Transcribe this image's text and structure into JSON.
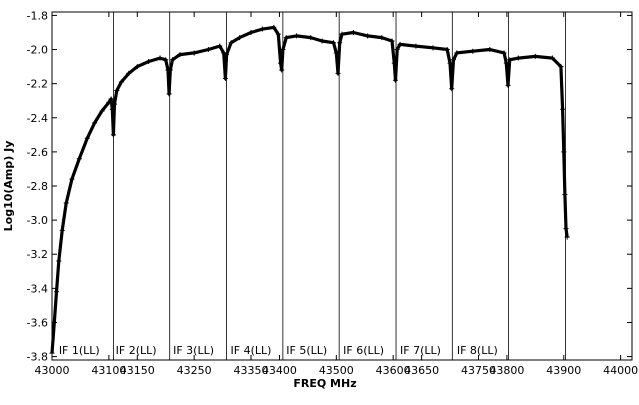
{
  "chart_data": {
    "type": "line",
    "title": "",
    "xlabel": "FREQ MHz",
    "ylabel": "Log10(Amp) Jy",
    "xlim": [
      43000,
      44020
    ],
    "ylim": [
      -3.82,
      -1.78
    ],
    "grid": false,
    "x_ticks": [
      {
        "value": 43000,
        "label": "43000"
      },
      {
        "value": 43100,
        "label": "43100"
      },
      {
        "value": 43150,
        "label": "43150"
      },
      {
        "value": 43250,
        "label": "43250"
      },
      {
        "value": 43350,
        "label": "43350"
      },
      {
        "value": 43400,
        "label": "43400"
      },
      {
        "value": 43500,
        "label": "43500"
      },
      {
        "value": 43600,
        "label": "43600"
      },
      {
        "value": 43650,
        "label": "43650"
      },
      {
        "value": 43750,
        "label": "43750"
      },
      {
        "value": 43800,
        "label": "43800"
      },
      {
        "value": 43900,
        "label": "43900"
      },
      {
        "value": 44000,
        "label": "44000"
      }
    ],
    "y_ticks": [
      {
        "value": -1.8,
        "label": "-1.8"
      },
      {
        "value": -2.0,
        "label": "-2.0"
      },
      {
        "value": -2.2,
        "label": "-2.2"
      },
      {
        "value": -2.4,
        "label": "-2.4"
      },
      {
        "value": -2.6,
        "label": "-2.6"
      },
      {
        "value": -2.8,
        "label": "-2.8"
      },
      {
        "value": -3.0,
        "label": "-3.0"
      },
      {
        "value": -3.2,
        "label": "-3.2"
      },
      {
        "value": -3.4,
        "label": "-3.4"
      },
      {
        "value": -3.6,
        "label": "-3.6"
      },
      {
        "value": -3.8,
        "label": "-3.8"
      }
    ],
    "if_boundaries": [
      43108,
      43207,
      43307,
      43406,
      43505,
      43605,
      43704,
      43803,
      43903
    ],
    "if_labels": [
      {
        "label": "IF 1(LL)",
        "x": 43012
      },
      {
        "label": "IF 2(LL)",
        "x": 43112
      },
      {
        "label": "IF 3(LL)",
        "x": 43213
      },
      {
        "label": "IF 4(LL)",
        "x": 43314
      },
      {
        "label": "IF 5(LL)",
        "x": 43412
      },
      {
        "label": "IF 6(LL)",
        "x": 43512
      },
      {
        "label": "IF 7(LL)",
        "x": 43612
      },
      {
        "label": "IF 8(LL)",
        "x": 43712
      }
    ],
    "series": [
      {
        "color": "#000000",
        "marker": "plus",
        "points": [
          [
            43000,
            -3.78
          ],
          [
            43004,
            -3.6
          ],
          [
            43008,
            -3.42
          ],
          [
            43012,
            -3.24
          ],
          [
            43018,
            -3.06
          ],
          [
            43025,
            -2.9
          ],
          [
            43035,
            -2.76
          ],
          [
            43048,
            -2.64
          ],
          [
            43062,
            -2.52
          ],
          [
            43075,
            -2.43
          ],
          [
            43088,
            -2.36
          ],
          [
            43100,
            -2.31
          ],
          [
            43104,
            -2.29
          ],
          [
            43106,
            -2.35
          ],
          [
            43108,
            -2.5
          ],
          [
            43110,
            -2.32
          ],
          [
            43114,
            -2.24
          ],
          [
            43122,
            -2.19
          ],
          [
            43135,
            -2.14
          ],
          [
            43150,
            -2.1
          ],
          [
            43170,
            -2.07
          ],
          [
            43190,
            -2.05
          ],
          [
            43200,
            -2.06
          ],
          [
            43204,
            -2.12
          ],
          [
            43206,
            -2.26
          ],
          [
            43208,
            -2.12
          ],
          [
            43212,
            -2.06
          ],
          [
            43225,
            -2.03
          ],
          [
            43250,
            -2.02
          ],
          [
            43275,
            -2.0
          ],
          [
            43295,
            -1.98
          ],
          [
            43302,
            -2.02
          ],
          [
            43305,
            -2.17
          ],
          [
            43307,
            -2.03
          ],
          [
            43315,
            -1.96
          ],
          [
            43330,
            -1.93
          ],
          [
            43350,
            -1.9
          ],
          [
            43370,
            -1.88
          ],
          [
            43390,
            -1.87
          ],
          [
            43398,
            -1.91
          ],
          [
            43402,
            -2.08
          ],
          [
            43404,
            -2.12
          ],
          [
            43406,
            -2.0
          ],
          [
            43412,
            -1.93
          ],
          [
            43430,
            -1.92
          ],
          [
            43455,
            -1.93
          ],
          [
            43475,
            -1.95
          ],
          [
            43495,
            -1.96
          ],
          [
            43500,
            -2.02
          ],
          [
            43503,
            -2.14
          ],
          [
            43506,
            -1.96
          ],
          [
            43510,
            -1.91
          ],
          [
            43530,
            -1.9
          ],
          [
            43555,
            -1.92
          ],
          [
            43580,
            -1.93
          ],
          [
            43598,
            -1.95
          ],
          [
            43602,
            -2.08
          ],
          [
            43604,
            -2.18
          ],
          [
            43607,
            -2.0
          ],
          [
            43612,
            -1.97
          ],
          [
            43640,
            -1.98
          ],
          [
            43670,
            -1.99
          ],
          [
            43695,
            -2.0
          ],
          [
            43700,
            -2.08
          ],
          [
            43703,
            -2.23
          ],
          [
            43706,
            -2.06
          ],
          [
            43712,
            -2.02
          ],
          [
            43740,
            -2.01
          ],
          [
            43770,
            -2.0
          ],
          [
            43795,
            -2.02
          ],
          [
            43799,
            -2.08
          ],
          [
            43802,
            -2.21
          ],
          [
            43805,
            -2.06
          ],
          [
            43820,
            -2.05
          ],
          [
            43850,
            -2.04
          ],
          [
            43880,
            -2.05
          ],
          [
            43895,
            -2.1
          ],
          [
            43898,
            -2.35
          ],
          [
            43900,
            -2.6
          ],
          [
            43902,
            -2.85
          ],
          [
            43904,
            -3.05
          ],
          [
            43906,
            -3.1
          ]
        ]
      }
    ]
  }
}
